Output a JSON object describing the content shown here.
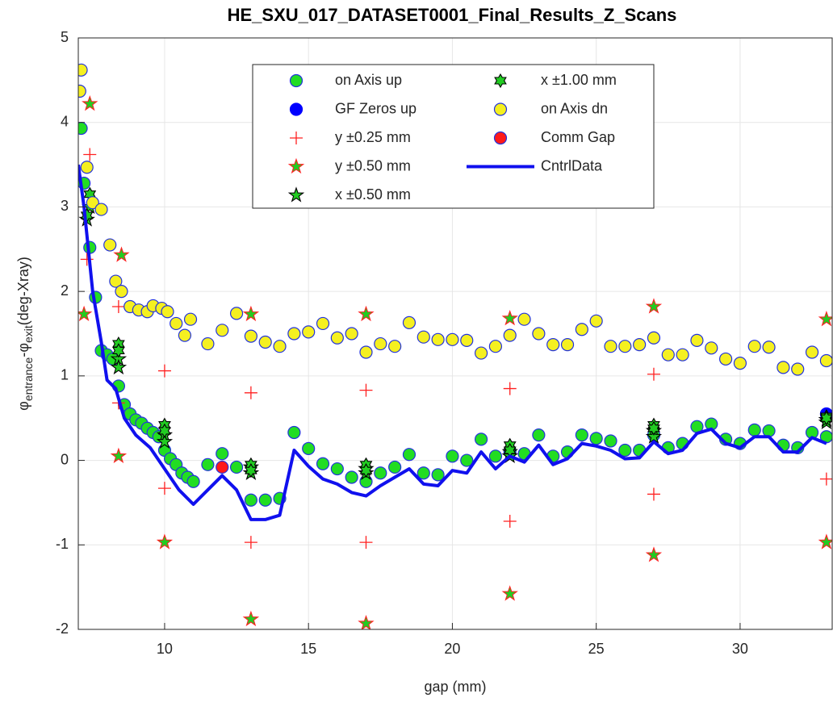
{
  "chart_data": {
    "type": "scatter",
    "title": "HE_SXU_017_DATASET0001_Final_Results_Z_Scans",
    "xlabel": "gap (mm)",
    "ylabel_parts": [
      "φ",
      "entrance",
      "-φ",
      "exit",
      "(deg-Xray)"
    ],
    "xlim": [
      7,
      33.2
    ],
    "ylim": [
      -2,
      5
    ],
    "xticks": [
      10,
      15,
      20,
      25,
      30
    ],
    "yticks": [
      -2,
      -1,
      0,
      1,
      2,
      3,
      4,
      5
    ],
    "grid": true,
    "legend": "top",
    "series": [
      {
        "name": "on Axis up",
        "marker": "o",
        "color": "#22dd22",
        "edge": "#2233dd",
        "x": [
          7.1,
          7.2,
          7.4,
          7.6,
          7.8,
          8.0,
          8.2,
          8.4,
          8.6,
          8.8,
          9.0,
          9.2,
          9.4,
          9.6,
          9.8,
          10.0,
          10.2,
          10.4,
          10.6,
          10.8,
          11.0,
          11.5,
          12.0,
          12.5,
          13.0,
          13.5,
          14.0,
          14.5,
          15.0,
          15.5,
          16.0,
          16.5,
          17.0,
          17.5,
          18.0,
          18.5,
          19.0,
          19.5,
          20.0,
          20.5,
          21.0,
          21.5,
          22.0,
          22.5,
          23.0,
          23.5,
          24.0,
          24.5,
          25.0,
          25.5,
          26.0,
          26.5,
          27.0,
          27.5,
          28.0,
          28.5,
          29.0,
          29.5,
          30.0,
          30.5,
          31.0,
          31.5,
          32.0,
          32.5,
          33.0
        ],
        "y": [
          3.93,
          3.28,
          2.52,
          1.93,
          1.3,
          1.25,
          1.2,
          0.88,
          0.66,
          0.55,
          0.48,
          0.44,
          0.38,
          0.33,
          0.28,
          0.12,
          0.02,
          -0.05,
          -0.15,
          -0.2,
          -0.25,
          -0.05,
          0.08,
          -0.08,
          -0.47,
          -0.47,
          -0.45,
          0.33,
          0.14,
          -0.04,
          -0.1,
          -0.2,
          -0.25,
          -0.15,
          -0.08,
          0.07,
          -0.15,
          -0.17,
          0.05,
          0.0,
          0.25,
          0.05,
          0.1,
          0.08,
          0.3,
          0.05,
          0.1,
          0.3,
          0.26,
          0.23,
          0.12,
          0.12,
          0.3,
          0.15,
          0.2,
          0.4,
          0.43,
          0.25,
          0.2,
          0.36,
          0.35,
          0.18,
          0.15,
          0.33,
          0.28
        ]
      },
      {
        "name": "GF Zeros up",
        "marker": "o",
        "color": "#0000ff",
        "edge": "#0000ff",
        "x": [
          33.0
        ],
        "y": [
          0.55
        ]
      },
      {
        "name": "y ±0.25 mm",
        "marker": "+",
        "color": "#ff2020",
        "edge": "#ff2020",
        "x": [
          7.4,
          7.3,
          8.4,
          8.4,
          10,
          10,
          13,
          13,
          17,
          17,
          22,
          22,
          27,
          27,
          33
        ],
        "y": [
          3.62,
          2.38,
          1.82,
          0.68,
          1.06,
          -0.33,
          0.8,
          -0.97,
          0.83,
          -0.97,
          0.85,
          -0.72,
          1.02,
          -0.4,
          -0.22
        ]
      },
      {
        "name": "y ±0.50 mm",
        "marker": "p",
        "color": "#22cc22",
        "edge": "#ff2020",
        "x": [
          7.4,
          7.2,
          8.5,
          8.4,
          10,
          13,
          13,
          17,
          17,
          22,
          22,
          27,
          27,
          33,
          33
        ],
        "y": [
          4.22,
          1.73,
          2.43,
          0.05,
          -0.97,
          1.73,
          -1.88,
          1.73,
          -1.93,
          1.68,
          -1.58,
          1.82,
          -1.12,
          1.67,
          -0.97
        ]
      },
      {
        "name": "x ±0.50 mm",
        "marker": "p",
        "color": "#22cc22",
        "edge": "#000000",
        "x": [
          7.4,
          7.3,
          8.4,
          8.4,
          10,
          10,
          13,
          13,
          17,
          17,
          22,
          22,
          27,
          27,
          33,
          33
        ],
        "y": [
          3.0,
          2.85,
          1.2,
          1.1,
          0.3,
          0.22,
          -0.08,
          -0.15,
          -0.1,
          -0.15,
          0.1,
          0.05,
          0.35,
          0.28,
          0.45,
          0.48
        ]
      },
      {
        "name": "x ±1.00 mm",
        "marker": "h",
        "color": "#22cc22",
        "edge": "#000000",
        "x": [
          7.4,
          7.3,
          8.4,
          8.4,
          10,
          10,
          13,
          13,
          17,
          17,
          22,
          22,
          27,
          27,
          33,
          33
        ],
        "y": [
          3.15,
          2.9,
          1.38,
          1.3,
          0.42,
          0.35,
          -0.05,
          -0.12,
          -0.05,
          -0.12,
          0.18,
          0.12,
          0.42,
          0.38,
          0.52,
          0.5
        ]
      },
      {
        "name": "on Axis dn",
        "marker": "o",
        "color": "#f5f020",
        "edge": "#2233dd",
        "x": [
          7.1,
          7.05,
          7.3,
          7.5,
          7.8,
          8.1,
          8.3,
          8.5,
          8.8,
          9.1,
          9.4,
          9.6,
          9.9,
          10.1,
          10.4,
          10.7,
          10.9,
          11.5,
          12.0,
          12.5,
          13.0,
          13.5,
          14.0,
          14.5,
          15.0,
          15.5,
          16.0,
          16.5,
          17.0,
          17.5,
          18.0,
          18.5,
          19.0,
          19.5,
          20.0,
          20.5,
          21.0,
          21.5,
          22.0,
          22.5,
          23.0,
          23.5,
          24.0,
          24.5,
          25.0,
          25.5,
          26.0,
          26.5,
          27.0,
          27.5,
          28.0,
          28.5,
          29.0,
          29.5,
          30.0,
          30.5,
          31.0,
          31.5,
          32.0,
          32.5,
          33.0
        ],
        "y": [
          4.62,
          4.37,
          3.47,
          3.05,
          2.97,
          2.55,
          2.12,
          2.0,
          1.82,
          1.78,
          1.76,
          1.83,
          1.8,
          1.76,
          1.62,
          1.48,
          1.67,
          1.38,
          1.54,
          1.74,
          1.47,
          1.4,
          1.35,
          1.5,
          1.52,
          1.62,
          1.45,
          1.5,
          1.28,
          1.38,
          1.35,
          1.63,
          1.46,
          1.43,
          1.43,
          1.42,
          1.27,
          1.35,
          1.48,
          1.67,
          1.5,
          1.37,
          1.37,
          1.55,
          1.65,
          1.35,
          1.35,
          1.37,
          1.45,
          1.25,
          1.25,
          1.42,
          1.33,
          1.2,
          1.15,
          1.35,
          1.34,
          1.1,
          1.08,
          1.28,
          1.18
        ]
      },
      {
        "name": "Comm Gap",
        "marker": "o",
        "color": "#ff1a1a",
        "edge": "#2233dd",
        "x": [
          12.0
        ],
        "y": [
          -0.08
        ]
      },
      {
        "name": "CntrlData",
        "marker": "line",
        "color": "#1010ee",
        "edge": "#1010ee",
        "x": [
          7.0,
          7.2,
          7.5,
          7.8,
          8.0,
          8.3,
          8.6,
          9.0,
          9.5,
          10.0,
          10.5,
          11.0,
          11.5,
          12.0,
          12.5,
          13.0,
          13.5,
          14.0,
          14.5,
          15.0,
          15.5,
          16.0,
          16.5,
          17.0,
          17.5,
          18.0,
          18.5,
          19.0,
          19.5,
          20.0,
          20.5,
          21.0,
          21.5,
          22.0,
          22.5,
          23.0,
          23.5,
          24.0,
          24.5,
          25.0,
          25.5,
          26.0,
          26.5,
          27.0,
          27.5,
          28.0,
          28.5,
          29.0,
          29.5,
          30.0,
          30.5,
          31.0,
          31.5,
          32.0,
          32.5,
          33.0
        ],
        "y": [
          3.5,
          3.0,
          2.0,
          1.4,
          0.95,
          0.85,
          0.5,
          0.3,
          0.15,
          -0.1,
          -0.35,
          -0.52,
          -0.35,
          -0.18,
          -0.35,
          -0.7,
          -0.7,
          -0.65,
          0.12,
          -0.07,
          -0.22,
          -0.28,
          -0.38,
          -0.42,
          -0.3,
          -0.2,
          -0.1,
          -0.28,
          -0.3,
          -0.12,
          -0.15,
          0.1,
          -0.1,
          0.05,
          -0.02,
          0.18,
          -0.05,
          0.02,
          0.2,
          0.17,
          0.12,
          0.02,
          0.03,
          0.22,
          0.08,
          0.12,
          0.32,
          0.37,
          0.2,
          0.15,
          0.28,
          0.28,
          0.1,
          0.1,
          0.27,
          0.2
        ]
      }
    ]
  }
}
